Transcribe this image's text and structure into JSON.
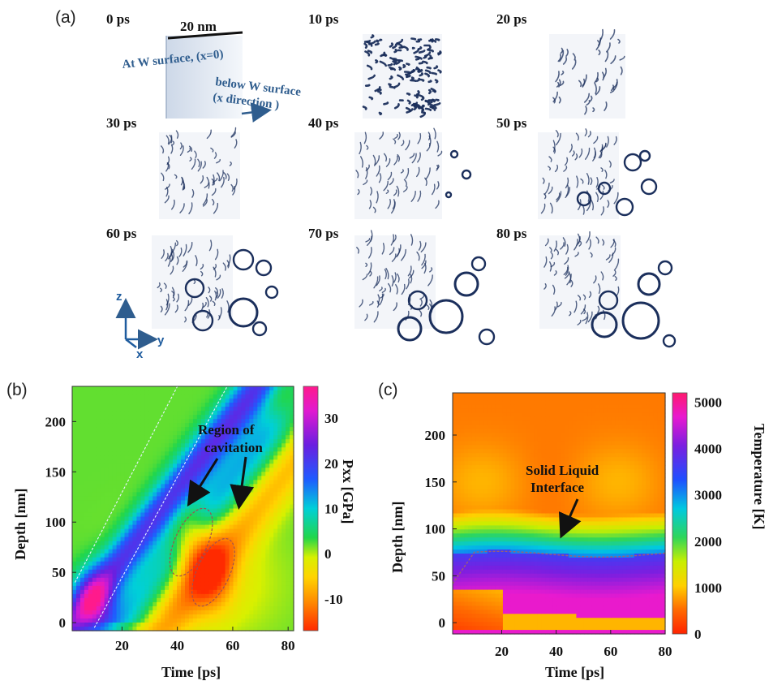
{
  "panel_a": {
    "label": "(a)",
    "snapshots": [
      {
        "time": "0 ps"
      },
      {
        "time": "10 ps"
      },
      {
        "time": "20 ps"
      },
      {
        "time": "30 ps"
      },
      {
        "time": "40 ps"
      },
      {
        "time": "50 ps"
      },
      {
        "time": "60 ps"
      },
      {
        "time": "70 ps"
      },
      {
        "time": "80 ps"
      }
    ],
    "scale_label": "20 nm",
    "surface_label": "At W surface, (x=0)",
    "below_label_1": "below W surface",
    "below_label_2": "(x direction )",
    "axes": {
      "z": "z",
      "y": "y",
      "x": "x"
    },
    "colors": {
      "ink": "#1b2f5c",
      "slab": "#dfe6f0",
      "annotation": "#2f5d8e"
    }
  },
  "chart_data": [
    {
      "type": "heatmap",
      "panel_label": "(b)",
      "xlabel": "Time [ps]",
      "ylabel": "Depth [nm]",
      "xlim": [
        2,
        82
      ],
      "ylim": [
        -8,
        235
      ],
      "x_ticks": [
        20,
        40,
        60,
        80
      ],
      "y_ticks": [
        0,
        50,
        100,
        150,
        200
      ],
      "colorbar": {
        "label": "Pxx  [GPa]",
        "ticks": [
          -10,
          0,
          10,
          20,
          30
        ],
        "range": [
          -17,
          37
        ]
      },
      "annotation": "Region of cavitation",
      "annotation_lines": [
        "Region of",
        "cavitation"
      ],
      "features": {
        "compression_front_slope_nm_per_ps": 3.5,
        "compression_peak": {
          "time": 10,
          "depth": 20,
          "value": 30
        },
        "cavitation_regions": [
          {
            "time": 45,
            "depth": 80,
            "value": -7
          },
          {
            "time": 53,
            "depth": 50,
            "value": -7
          }
        ]
      }
    },
    {
      "type": "heatmap",
      "panel_label": "(c)",
      "xlabel": "Time [ps]",
      "ylabel": "Depth [nm]",
      "xlim": [
        2,
        80
      ],
      "ylim": [
        -12,
        245
      ],
      "x_ticks": [
        20,
        40,
        60,
        80
      ],
      "y_ticks": [
        0,
        50,
        100,
        150,
        200
      ],
      "colorbar": {
        "label": "Temperature  [K]",
        "ticks": [
          0,
          1000,
          2000,
          3000,
          4000,
          5000
        ],
        "range": [
          0,
          5200
        ]
      },
      "annotation": "Solid Liquid Interface",
      "annotation_lines": [
        "Solid Liquid",
        "Interface"
      ],
      "features": {
        "interface_depth_nm": 73,
        "background_temperature_K": 600,
        "hot_region_temperature_K": 4500
      }
    }
  ]
}
